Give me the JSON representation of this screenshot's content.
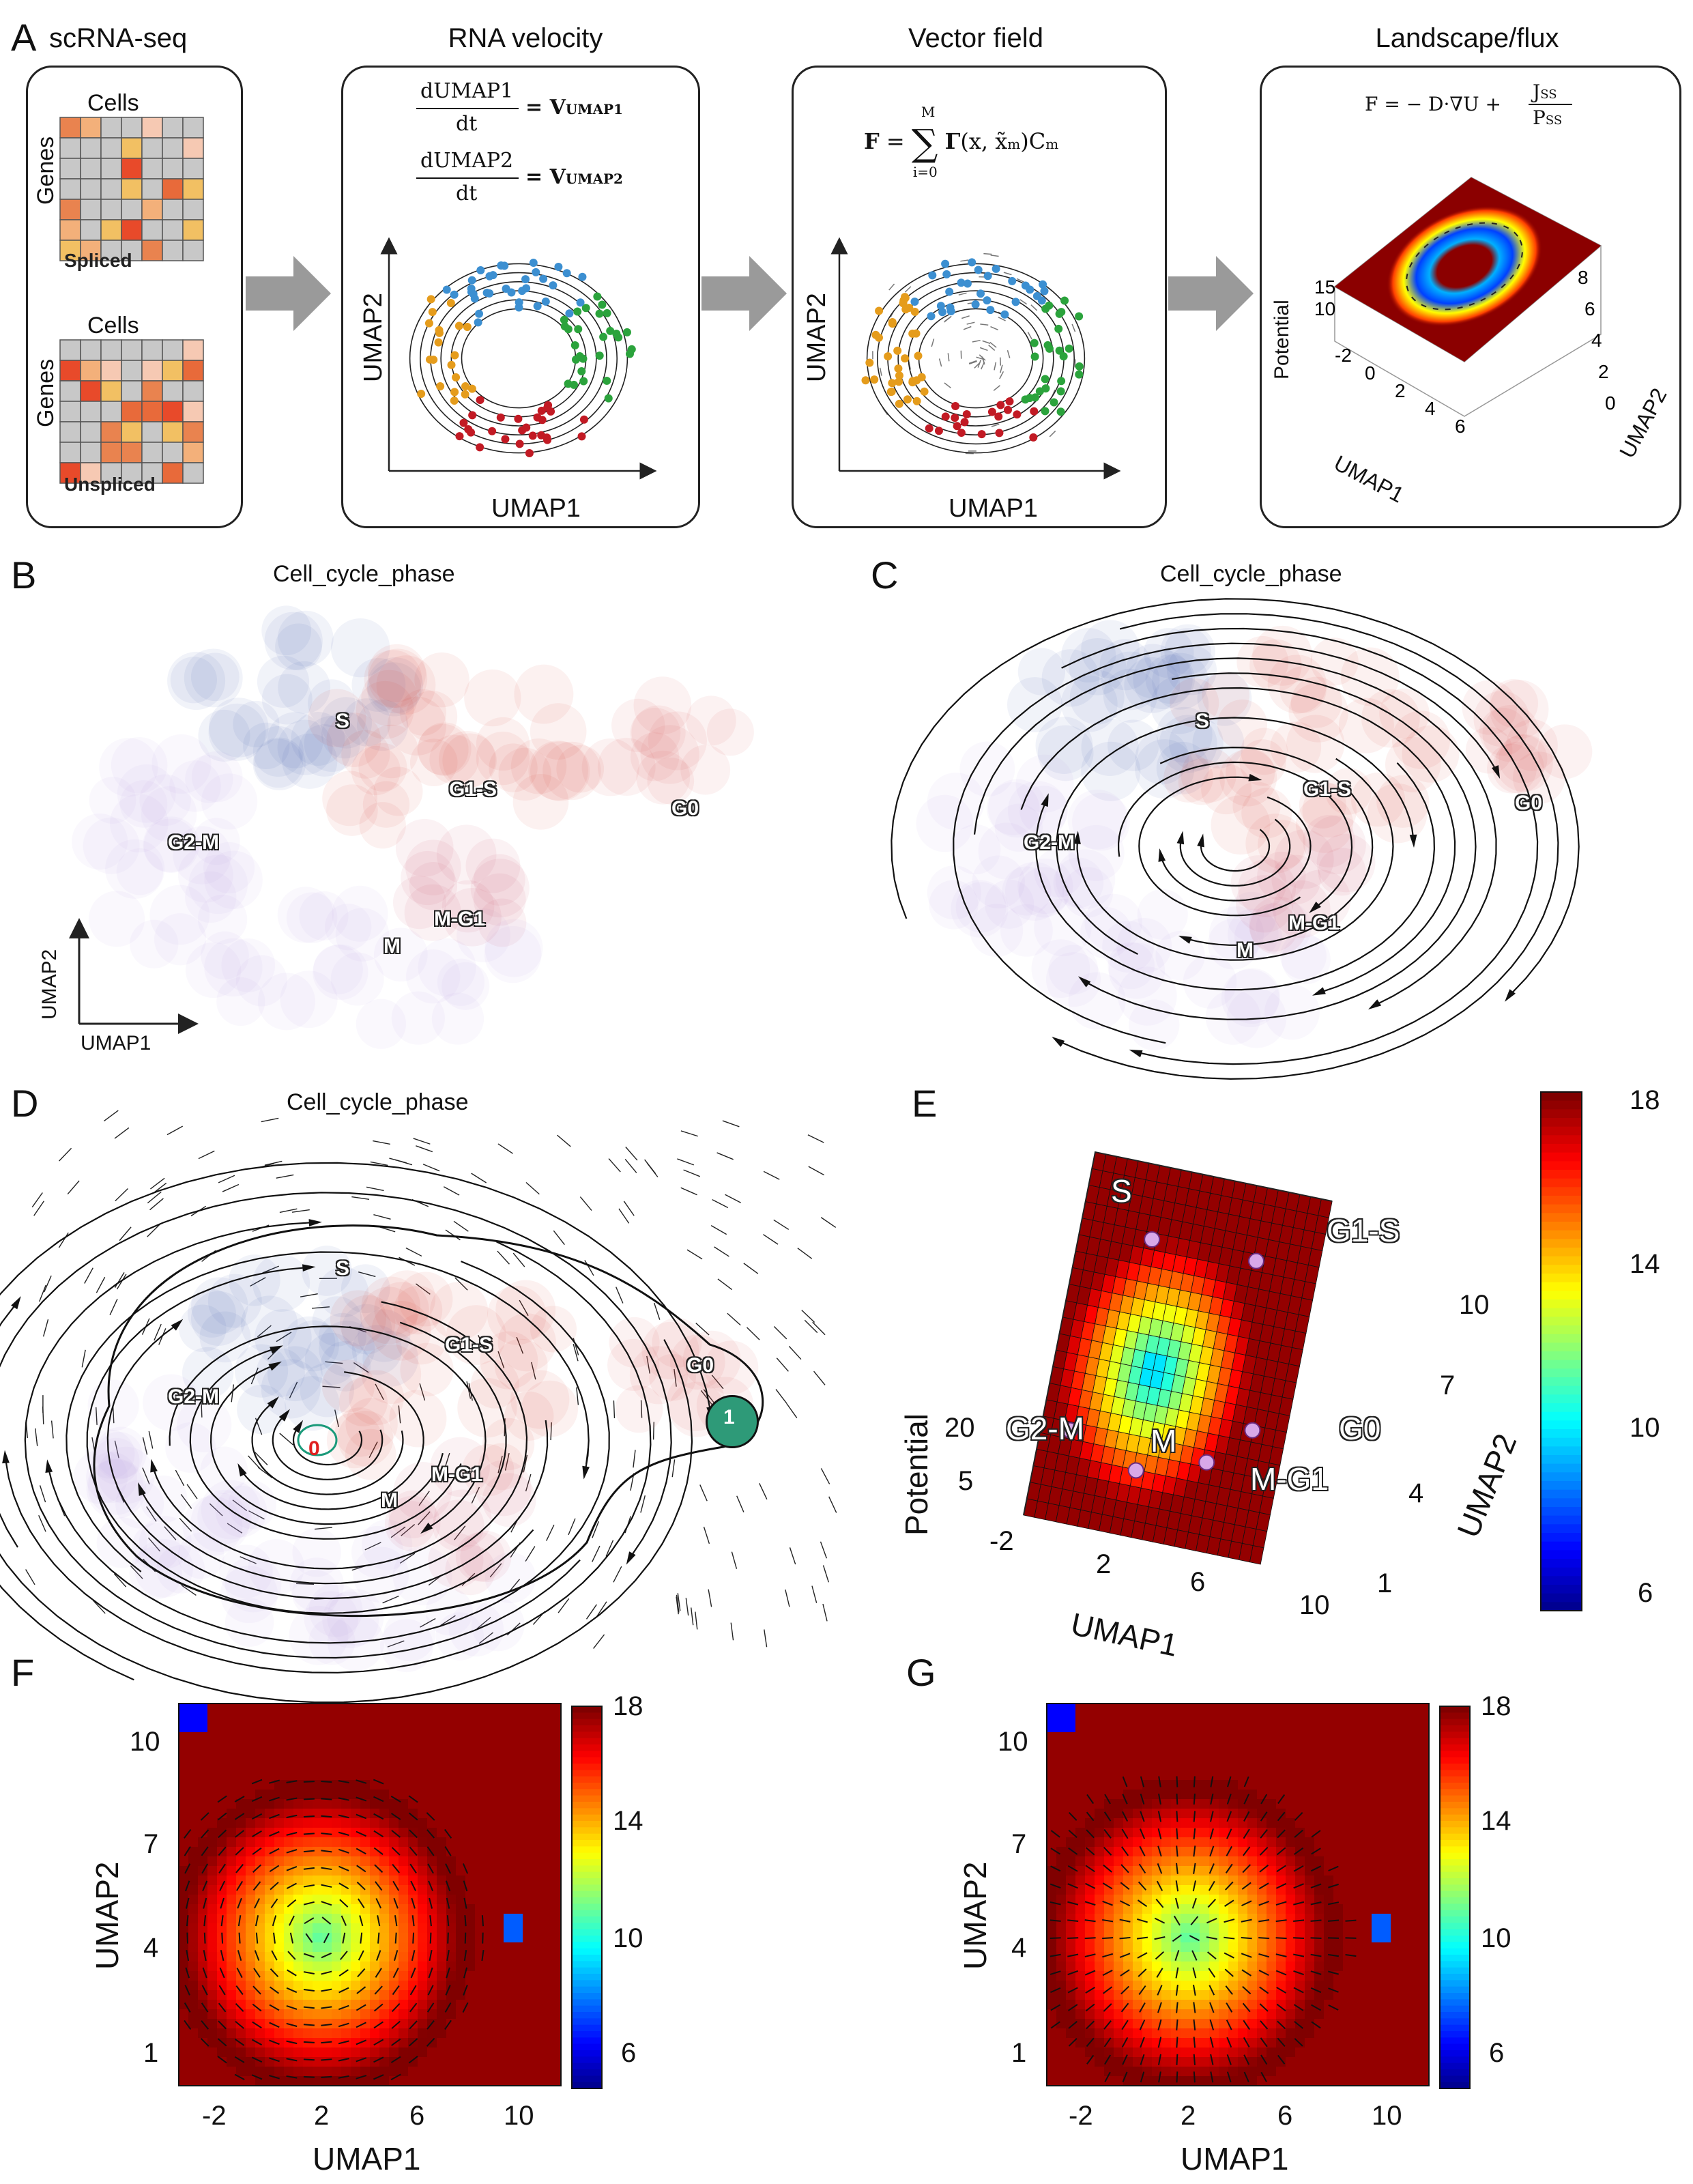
{
  "panels": {
    "A": {
      "label": "A",
      "steps": [
        {
          "title": "scRNA-seq"
        },
        {
          "title": "RNA velocity",
          "eq1_num": "dUMAP1",
          "eq1_den": "dt",
          "eq1_rhs": "V",
          "eq1_sub": "UMAP1",
          "eq2_num": "dUMAP2",
          "eq2_den": "dt",
          "eq2_rhs": "V",
          "eq2_sub": "UMAP2",
          "xlabel": "UMAP1",
          "ylabel": "UMAP2"
        },
        {
          "title": "Vector field",
          "eq": "F = ∑ Γ(x, x̃",
          "eq_sub": "m",
          "eq_tail": ")C",
          "eq_tail_sub": "m",
          "sum_top": "M",
          "sum_bottom": "i=0",
          "xlabel": "UMAP1",
          "ylabel": "UMAP2"
        },
        {
          "title": "Landscape/flux",
          "eq_lhs": "F = − D·∇U +",
          "eq_num": "J",
          "eq_num_sub": "SS",
          "eq_den": "P",
          "eq_den_sub": "SS",
          "zlabel": "Potential",
          "xlabel": "UMAP1",
          "ylabel": "UMAP2",
          "z_ticks": [
            "15",
            "10"
          ],
          "x_ticks": [
            "-2",
            "0",
            "2",
            "4",
            "6"
          ],
          "y_ticks": [
            "0",
            "2",
            "4",
            "6",
            "8"
          ]
        }
      ],
      "matrix1": {
        "cols_label": "Cells",
        "rows_label": "Genes",
        "tag": "Spliced"
      },
      "matrix2": {
        "cols_label": "Cells",
        "rows_label": "Genes",
        "tag": "Unspliced"
      }
    },
    "B": {
      "label": "B",
      "title": "Cell_cycle_phase",
      "xlabel": "UMAP1",
      "ylabel": "UMAP2",
      "phases": [
        "S",
        "G1-S",
        "G0",
        "G2-M",
        "M-G1",
        "M"
      ]
    },
    "C": {
      "label": "C",
      "title": "Cell_cycle_phase",
      "phases": [
        "S",
        "G1-S",
        "G0",
        "G2-M",
        "M-G1",
        "M"
      ]
    },
    "D": {
      "label": "D",
      "title": "Cell_cycle_phase",
      "phases": [
        "S",
        "G1-S",
        "G0",
        "G2-M",
        "M-G1",
        "M"
      ],
      "fixed_points": [
        "0",
        "1"
      ]
    },
    "E": {
      "label": "E",
      "zlabel": "Potential",
      "xlabel": "UMAP1",
      "ylabel": "UMAP2",
      "phases": [
        "S",
        "G1-S",
        "G2-M",
        "M",
        "G0",
        "M-G1"
      ],
      "z_ticks": [
        "20",
        "5"
      ],
      "x_ticks": [
        "-2",
        "2",
        "6",
        "10"
      ],
      "y_ticks": [
        "10",
        "7",
        "4",
        "1"
      ],
      "colorbar_ticks": [
        "18",
        "14",
        "10",
        "6"
      ]
    },
    "F": {
      "label": "F",
      "xlabel": "UMAP1",
      "ylabel": "UMAP2",
      "x_ticks": [
        "-2",
        "2",
        "6",
        "10"
      ],
      "y_ticks": [
        "10",
        "7",
        "4",
        "1"
      ],
      "colorbar_ticks": [
        "18",
        "14",
        "10",
        "6"
      ]
    },
    "G": {
      "label": "G",
      "xlabel": "UMAP1",
      "ylabel": "UMAP2",
      "x_ticks": [
        "-2",
        "2",
        "6",
        "10"
      ],
      "y_ticks": [
        "10",
        "7",
        "4",
        "1"
      ],
      "colorbar_ticks": [
        "18",
        "14",
        "10",
        "6"
      ]
    }
  },
  "colors": {
    "S": "#3d5aa8",
    "G1-S": "#d93a2f",
    "G0": "#d94a40",
    "G2-M": "#b79ae8",
    "M": "#b8a0e0",
    "M-G1": "#c9406a",
    "arrow": "#9a9a9a",
    "potential_high": "#8b0000",
    "potential_low": "#00008b"
  }
}
